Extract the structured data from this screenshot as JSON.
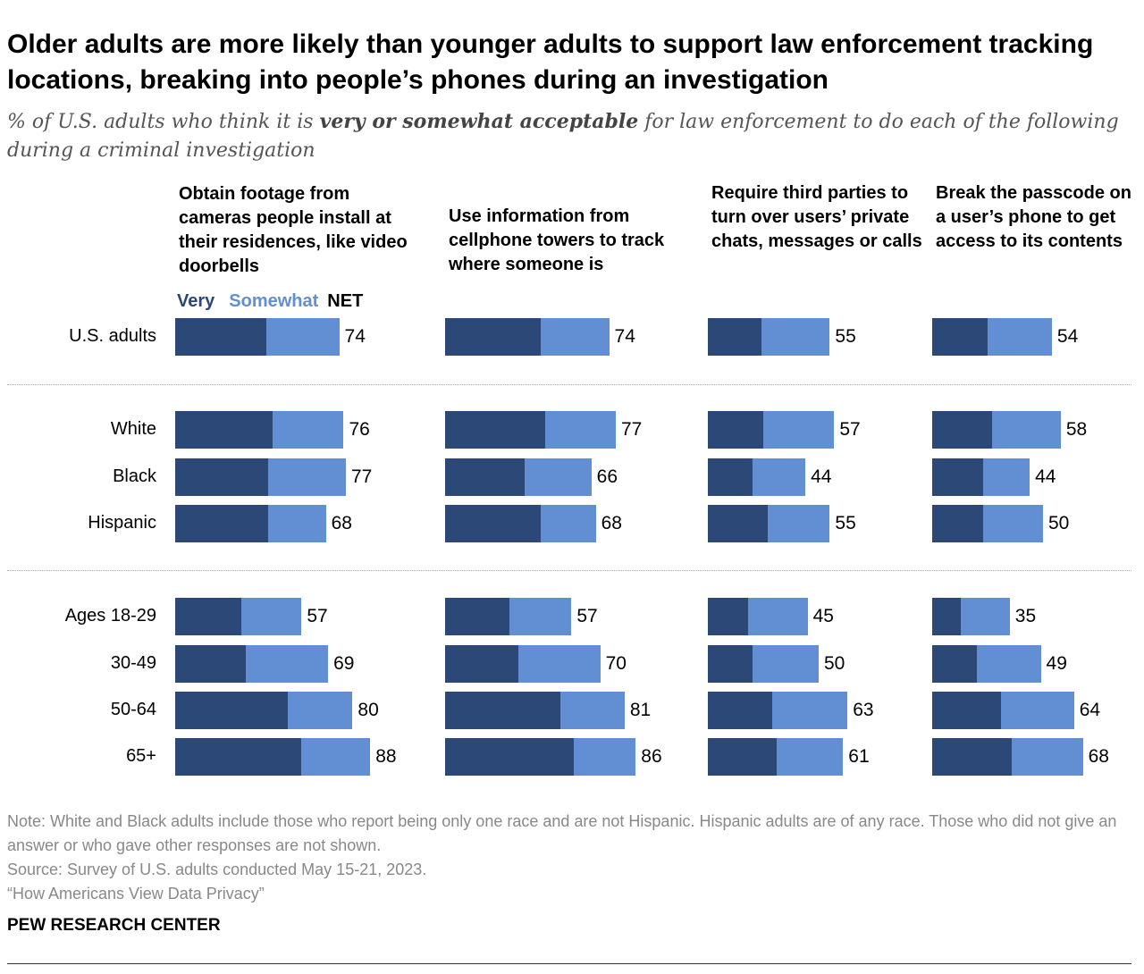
{
  "title": "Older adults are more likely than younger adults to support law enforcement tracking locations, breaking into people’s phones during an investigation",
  "subtitle_pre": "% of U.S. adults who think it is ",
  "subtitle_bold": "very or somewhat acceptable",
  "subtitle_post": " for law enforcement to do each of the following during a criminal investigation",
  "legend": {
    "very": "Very",
    "somewhat": "Somewhat",
    "net": "NET"
  },
  "colors": {
    "very": "#2c4877",
    "somewhat": "#628fd3"
  },
  "chart_data": {
    "type": "bar",
    "stacked": true,
    "orientation": "horizontal",
    "categories": [
      "U.S. adults",
      "White",
      "Black",
      "Hispanic",
      "Ages 18-29",
      "30-49",
      "50-64",
      "65+"
    ],
    "panels": [
      {
        "title": "Obtain footage from cameras people install at their residences, like video doorbells",
        "very": [
          41,
          44,
          42,
          42,
          30,
          32,
          51,
          57
        ],
        "somewhat": [
          33,
          32,
          35,
          26,
          27,
          37,
          29,
          31
        ],
        "net": [
          74,
          76,
          77,
          68,
          57,
          69,
          80,
          88
        ]
      },
      {
        "title": "Use information from cellphone towers to track where someone is",
        "very": [
          43,
          45,
          36,
          43,
          29,
          33,
          52,
          58
        ],
        "somewhat": [
          31,
          32,
          30,
          25,
          28,
          37,
          29,
          28
        ],
        "net": [
          74,
          77,
          66,
          68,
          57,
          70,
          81,
          86
        ]
      },
      {
        "title": "Require third parties to turn over users’ private chats, messages or calls",
        "very": [
          24,
          25,
          20,
          27,
          18,
          20,
          29,
          31
        ],
        "somewhat": [
          31,
          32,
          24,
          28,
          27,
          30,
          34,
          30
        ],
        "net": [
          55,
          57,
          44,
          55,
          45,
          50,
          63,
          61
        ]
      },
      {
        "title": "Break the passcode on a user’s phone to get access to its contents",
        "very": [
          25,
          27,
          23,
          23,
          13,
          20,
          31,
          36
        ],
        "somewhat": [
          29,
          31,
          21,
          27,
          22,
          29,
          33,
          32
        ],
        "net": [
          54,
          58,
          44,
          50,
          35,
          49,
          64,
          68
        ]
      }
    ]
  },
  "note": "Note: White and Black adults include those who report being only one race and are not Hispanic. Hispanic adults are of any race. Those who did not give an answer or who gave other responses are not shown.",
  "source": "Source: Survey of U.S. adults conducted May 15-21, 2023.",
  "report": "“How Americans View Data Privacy”",
  "logo": "PEW RESEARCH CENTER"
}
